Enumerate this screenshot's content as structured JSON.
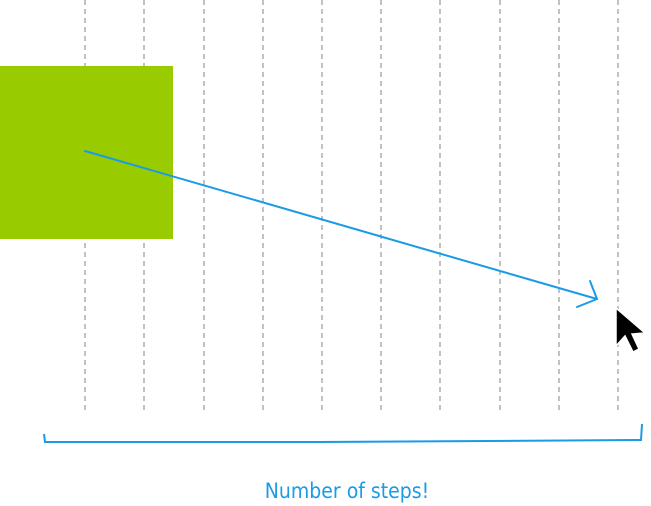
{
  "caption": "Number of steps!"
}
